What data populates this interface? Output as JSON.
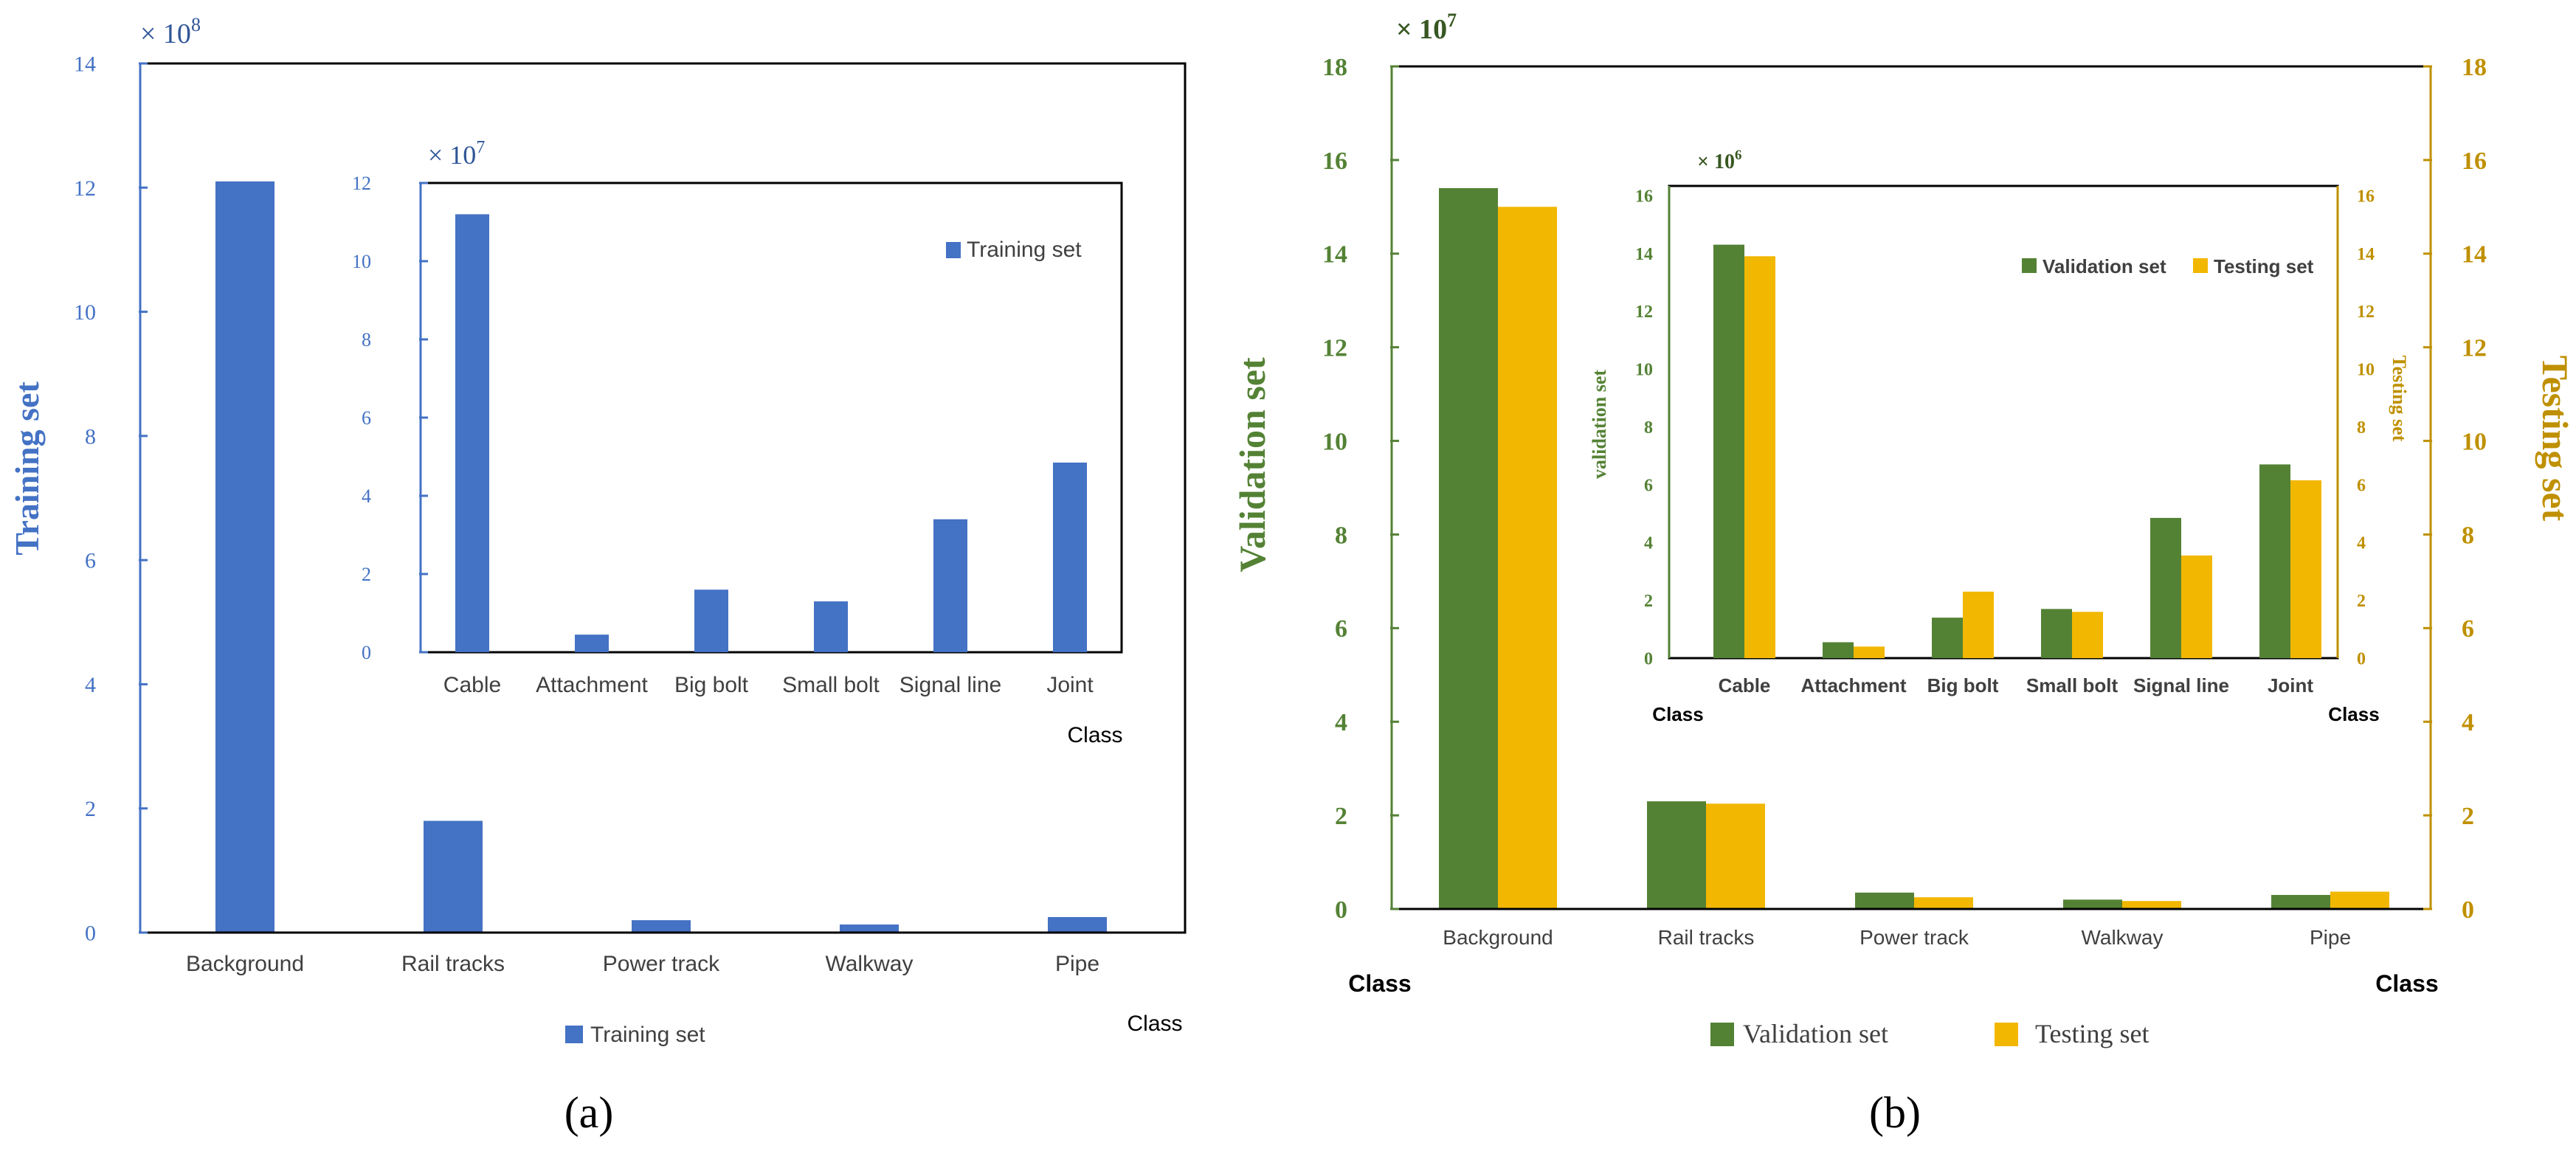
{
  "colors": {
    "training": "#4472C4",
    "validation": "#548235",
    "testing": "#F2B700",
    "axis_validation": "#548235",
    "axis_testing": "#BF9000",
    "axis_training": "#4472C4",
    "text": "#000000"
  },
  "panel_labels": {
    "a": "(a)",
    "b": "(b)"
  },
  "chart_data": [
    {
      "id": "a-main",
      "type": "bar",
      "multiplier": "× 10",
      "exponent": "8",
      "ylabel": "Training set",
      "xlabel": "Class",
      "ylim": [
        0,
        14
      ],
      "yticks": [
        "0",
        "2",
        "4",
        "6",
        "8",
        "10",
        "12",
        "14"
      ],
      "categories": [
        "Background",
        "Rail tracks",
        "Power track",
        "Walkway",
        "Pipe"
      ],
      "series": [
        {
          "name": "Training set",
          "values": [
            12.1,
            1.8,
            0.2,
            0.13,
            0.25
          ]
        }
      ],
      "legend": "bottom-center"
    },
    {
      "id": "a-inset",
      "type": "bar",
      "multiplier": "× 10",
      "exponent": "7",
      "xlabel": "Class",
      "ylim": [
        0,
        12
      ],
      "yticks": [
        "0",
        "2",
        "4",
        "6",
        "8",
        "10",
        "12"
      ],
      "categories": [
        "Cable",
        "Attachment",
        "Big bolt",
        "Small bolt",
        "Signal line",
        "Joint"
      ],
      "series": [
        {
          "name": "Training set",
          "values": [
            11.2,
            0.45,
            1.6,
            1.3,
            3.4,
            4.85
          ]
        }
      ],
      "legend": "top-right"
    },
    {
      "id": "b-main",
      "type": "bar",
      "multiplier": "× 10",
      "exponent": "7",
      "ylabel": "Validation set",
      "ylabel_right": "Testing set",
      "xlabel": "Class",
      "ylim": [
        0,
        18
      ],
      "yticks": [
        "0",
        "2",
        "4",
        "6",
        "8",
        "10",
        "12",
        "14",
        "16",
        "18"
      ],
      "categories": [
        "Background",
        "Rail tracks",
        "Power track",
        "Walkway",
        "Pipe"
      ],
      "series": [
        {
          "name": "Validation set",
          "values": [
            15.4,
            2.3,
            0.35,
            0.2,
            0.3
          ]
        },
        {
          "name": "Testing set",
          "values": [
            15.0,
            2.25,
            0.25,
            0.17,
            0.37
          ]
        }
      ],
      "legend": "bottom-center"
    },
    {
      "id": "b-inset",
      "type": "bar",
      "multiplier": "× 10",
      "exponent": "6",
      "ylabel": "validation set",
      "ylabel_right": "Testing set",
      "xlabel": "Class",
      "ylim": [
        0,
        16
      ],
      "yticks": [
        "0",
        "2",
        "4",
        "6",
        "8",
        "10",
        "12",
        "14",
        "16"
      ],
      "categories": [
        "Cable",
        "Attachment",
        "Big bolt",
        "Small bolt",
        "Signal line",
        "Joint"
      ],
      "series": [
        {
          "name": "Validation set",
          "values": [
            14.3,
            0.55,
            1.4,
            1.7,
            4.85,
            6.7
          ]
        },
        {
          "name": "Testing set",
          "values": [
            13.9,
            0.4,
            2.3,
            1.6,
            3.55,
            6.15
          ]
        }
      ],
      "legend": "top-right"
    }
  ]
}
